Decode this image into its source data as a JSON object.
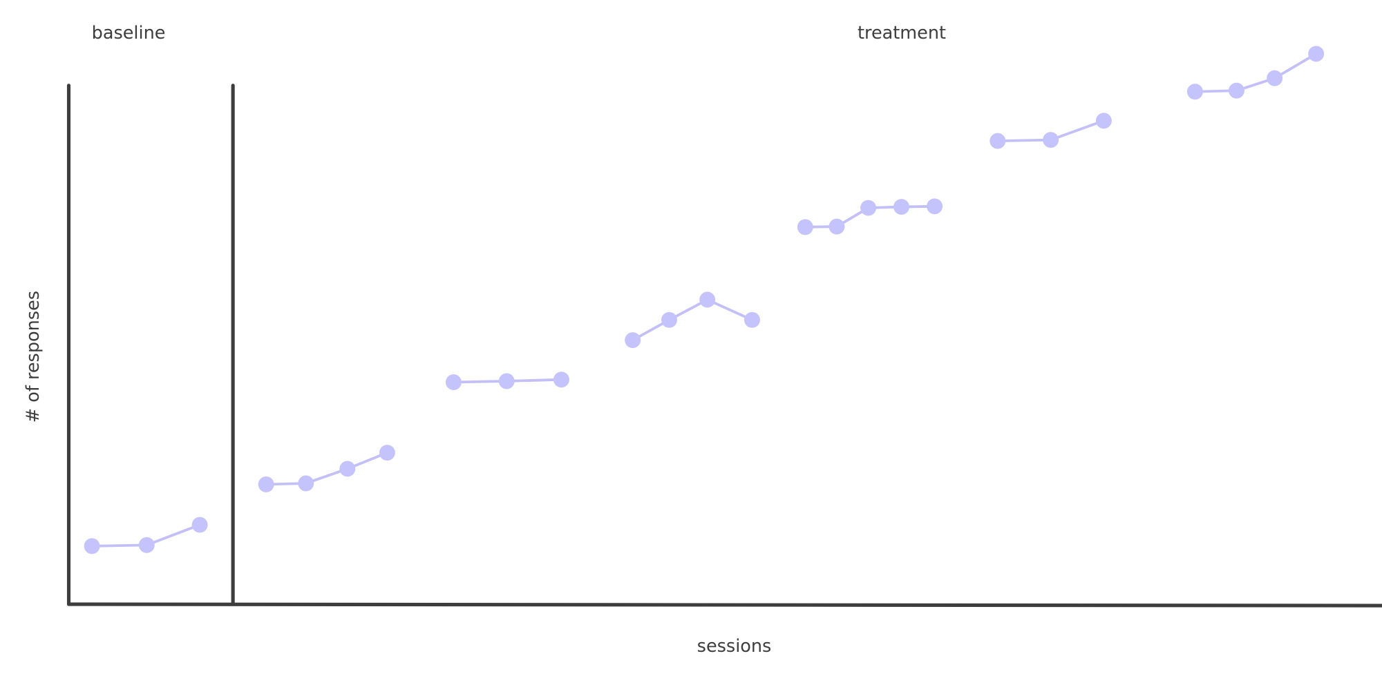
{
  "chart_data": {
    "type": "line",
    "title": "",
    "xlabel": "sessions",
    "ylabel": "# of responses",
    "xlim": [
      0,
      100
    ],
    "ylim": [
      0,
      100
    ],
    "grid": false,
    "phase_labels": [
      "baseline",
      "treatment"
    ],
    "phase_change_x": 9.9,
    "colors": {
      "axis": "#3d3d3d",
      "points": "#c5c3fb",
      "lines": "#c2c0f7"
    },
    "series": [
      {
        "phase": "baseline",
        "x": [
          1.4,
          4.7,
          7.9
        ],
        "y": [
          11.2,
          11.4,
          15.3
        ]
      },
      {
        "phase": "treatment",
        "x": [
          11.9,
          14.3,
          16.8,
          19.2
        ],
        "y": [
          23.1,
          23.3,
          26.1,
          29.2
        ]
      },
      {
        "phase": "treatment",
        "x": [
          23.2,
          26.4,
          29.7
        ],
        "y": [
          42.8,
          43.0,
          43.3
        ]
      },
      {
        "phase": "treatment",
        "x": [
          34.0,
          36.2,
          38.5,
          41.2
        ],
        "y": [
          50.9,
          54.8,
          58.7,
          54.8
        ]
      },
      {
        "phase": "treatment",
        "x": [
          44.4,
          46.3,
          48.2,
          50.2,
          52.2
        ],
        "y": [
          72.7,
          72.8,
          76.4,
          76.6,
          76.7
        ]
      },
      {
        "phase": "treatment",
        "x": [
          56.0,
          59.2,
          62.4
        ],
        "y": [
          89.3,
          89.5,
          93.2
        ]
      },
      {
        "phase": "treatment",
        "x": [
          67.9,
          70.4,
          72.7,
          75.2
        ],
        "y": [
          98.8,
          99.0,
          101.4,
          106.1
        ]
      }
    ]
  }
}
